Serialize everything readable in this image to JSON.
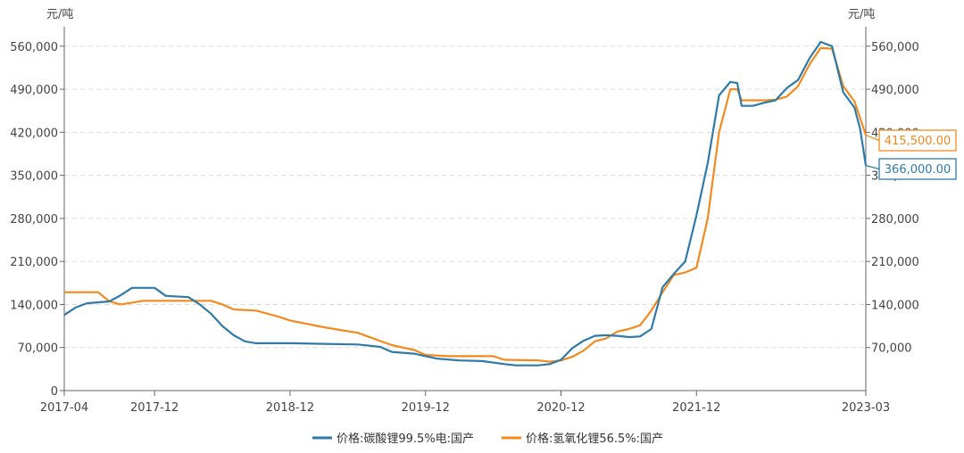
{
  "chart_data": {
    "type": "line",
    "y_unit_left": "元/吨",
    "y_unit_right": "元/吨",
    "ylim": [
      0,
      580000
    ],
    "left_ticks": [
      {
        "value": 0,
        "label": "0"
      },
      {
        "value": 70000,
        "label": "70,000"
      },
      {
        "value": 140000,
        "label": "140,000"
      },
      {
        "value": 210000,
        "label": "210,000"
      },
      {
        "value": 280000,
        "label": "280,000"
      },
      {
        "value": 350000,
        "label": "350,000"
      },
      {
        "value": 420000,
        "label": "420,000"
      },
      {
        "value": 490000,
        "label": "490,000"
      },
      {
        "value": 560000,
        "label": "560,000"
      }
    ],
    "right_ticks": [
      {
        "value": 70000,
        "label": "70,000"
      },
      {
        "value": 140000,
        "label": "140,000"
      },
      {
        "value": 210000,
        "label": "210,000"
      },
      {
        "value": 280000,
        "label": "280,000"
      },
      {
        "value": 350000,
        "label": "350,000"
      },
      {
        "value": 420000,
        "label": "420,000"
      },
      {
        "value": 490000,
        "label": "490,000"
      },
      {
        "value": 560000,
        "label": "560,000"
      }
    ],
    "x_ticks": [
      {
        "value": "2017-04",
        "label": "2017-04"
      },
      {
        "value": "2017-12",
        "label": "2017-12"
      },
      {
        "value": "2018-12",
        "label": "2018-12"
      },
      {
        "value": "2019-12",
        "label": "2019-12"
      },
      {
        "value": "2020-12",
        "label": "2020-12"
      },
      {
        "value": "2021-12",
        "label": "2021-12"
      },
      {
        "value": "2023-03",
        "label": "2023-03"
      }
    ],
    "xlim": [
      "2017-04",
      "2023-03"
    ],
    "grid": true,
    "legend_position": "bottom",
    "series": [
      {
        "name": "价格:碳酸锂99.5%电:国产",
        "color": "#2E7BAA",
        "last_value_label": "366,000.00",
        "points": [
          [
            "2017-04",
            123000
          ],
          [
            "2017-05",
            135000
          ],
          [
            "2017-06",
            142000
          ],
          [
            "2017-08",
            145000
          ],
          [
            "2017-09",
            155000
          ],
          [
            "2017-10",
            167000
          ],
          [
            "2017-12",
            167000
          ],
          [
            "2018-01",
            154000
          ],
          [
            "2018-03",
            152000
          ],
          [
            "2018-04",
            140000
          ],
          [
            "2018-05",
            125000
          ],
          [
            "2018-06",
            105000
          ],
          [
            "2018-07",
            90000
          ],
          [
            "2018-08",
            80000
          ],
          [
            "2018-09",
            77000
          ],
          [
            "2018-12",
            77000
          ],
          [
            "2019-03",
            76000
          ],
          [
            "2019-06",
            75000
          ],
          [
            "2019-08",
            71000
          ],
          [
            "2019-09",
            63000
          ],
          [
            "2019-11",
            60000
          ],
          [
            "2019-12",
            56000
          ],
          [
            "2020-01",
            52000
          ],
          [
            "2020-03",
            49000
          ],
          [
            "2020-05",
            48000
          ],
          [
            "2020-07",
            43000
          ],
          [
            "2020-08",
            41000
          ],
          [
            "2020-10",
            41000
          ],
          [
            "2020-11",
            43000
          ],
          [
            "2020-12",
            50000
          ],
          [
            "2021-01",
            69000
          ],
          [
            "2021-02",
            81000
          ],
          [
            "2021-03",
            89000
          ],
          [
            "2021-04",
            90000
          ],
          [
            "2021-05",
            89000
          ],
          [
            "2021-06",
            87000
          ],
          [
            "2021-07",
            88000
          ],
          [
            "2021-08",
            100000
          ],
          [
            "2021-09",
            168000
          ],
          [
            "2021-10",
            190000
          ],
          [
            "2021-11",
            210000
          ],
          [
            "2021-12",
            285000
          ],
          [
            "2022-01",
            370000
          ],
          [
            "2022-02",
            480000
          ],
          [
            "2022-03",
            502000
          ],
          [
            "2022-03-20",
            500000
          ],
          [
            "2022-04",
            463000
          ],
          [
            "2022-05",
            463000
          ],
          [
            "2022-06",
            468000
          ],
          [
            "2022-07",
            472000
          ],
          [
            "2022-08",
            492000
          ],
          [
            "2022-09",
            505000
          ],
          [
            "2022-10",
            540000
          ],
          [
            "2022-11",
            567000
          ],
          [
            "2022-12",
            560000
          ],
          [
            "2023-01",
            485000
          ],
          [
            "2023-02",
            460000
          ],
          [
            "2023-02-15",
            425000
          ],
          [
            "2023-03",
            366000
          ]
        ]
      },
      {
        "name": "价格:氢氧化锂56.5%:国产",
        "color": "#F28A1E",
        "last_value_label": "415,500.00",
        "points": [
          [
            "2017-04",
            160000
          ],
          [
            "2017-07",
            160000
          ],
          [
            "2017-08",
            145000
          ],
          [
            "2017-09",
            140000
          ],
          [
            "2017-11",
            146000
          ],
          [
            "2018-01",
            146000
          ],
          [
            "2018-05",
            146000
          ],
          [
            "2018-06",
            140000
          ],
          [
            "2018-07",
            132000
          ],
          [
            "2018-09",
            130000
          ],
          [
            "2018-11",
            120000
          ],
          [
            "2018-12",
            114000
          ],
          [
            "2019-03",
            103000
          ],
          [
            "2019-06",
            94000
          ],
          [
            "2019-09",
            74000
          ],
          [
            "2019-11",
            66000
          ],
          [
            "2019-12",
            58000
          ],
          [
            "2020-02",
            56000
          ],
          [
            "2020-04",
            56000
          ],
          [
            "2020-06",
            56000
          ],
          [
            "2020-07",
            50000
          ],
          [
            "2020-10",
            49000
          ],
          [
            "2020-11",
            47000
          ],
          [
            "2020-12",
            49000
          ],
          [
            "2021-01",
            55000
          ],
          [
            "2021-02",
            65000
          ],
          [
            "2021-03",
            80000
          ],
          [
            "2021-04",
            85000
          ],
          [
            "2021-05",
            96000
          ],
          [
            "2021-06",
            100000
          ],
          [
            "2021-07",
            106000
          ],
          [
            "2021-08",
            130000
          ],
          [
            "2021-09",
            160000
          ],
          [
            "2021-10",
            188000
          ],
          [
            "2021-11",
            192000
          ],
          [
            "2021-12",
            200000
          ],
          [
            "2022-01",
            280000
          ],
          [
            "2022-02",
            420000
          ],
          [
            "2022-03",
            490000
          ],
          [
            "2022-03-20",
            490000
          ],
          [
            "2022-04",
            472000
          ],
          [
            "2022-06",
            472000
          ],
          [
            "2022-07",
            473000
          ],
          [
            "2022-08",
            478000
          ],
          [
            "2022-09",
            495000
          ],
          [
            "2022-10",
            530000
          ],
          [
            "2022-11",
            557000
          ],
          [
            "2022-12",
            556000
          ],
          [
            "2023-01",
            495000
          ],
          [
            "2023-02",
            470000
          ],
          [
            "2023-03",
            415500
          ]
        ]
      }
    ]
  }
}
